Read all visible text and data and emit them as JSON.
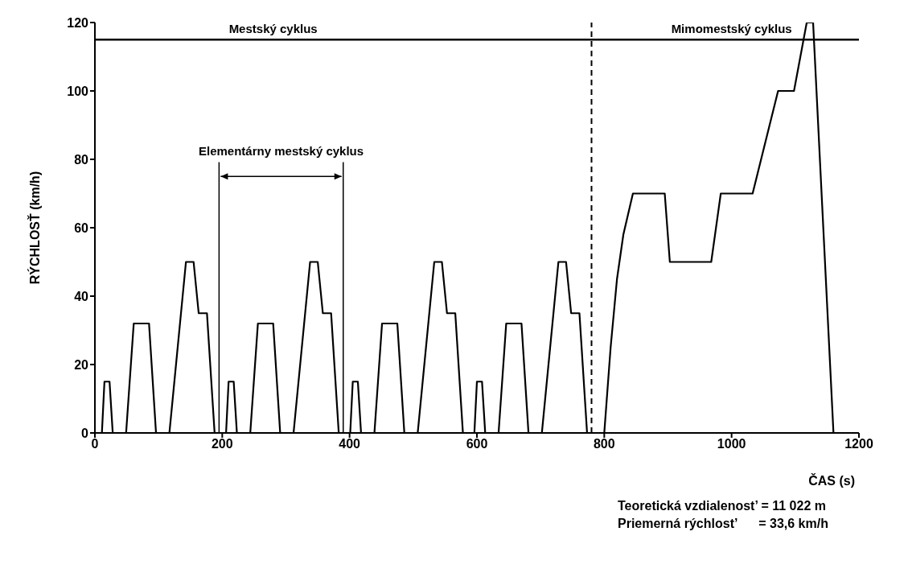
{
  "chart_data": {
    "type": "line",
    "xlabel": "ČAS (s)",
    "ylabel": "RÝCHLOSŤ (km/h)",
    "xlim": [
      0,
      1200
    ],
    "xticks": [
      0,
      200,
      400,
      600,
      800,
      1000,
      1200
    ],
    "ylim": [
      0,
      120
    ],
    "yticks": [
      0,
      20,
      40,
      60,
      80,
      100,
      120
    ],
    "grid": false,
    "legend": false,
    "marker": "none",
    "line_style": "solid",
    "series": [
      {
        "color": "#000000",
        "x": [
          0,
          11,
          15,
          23,
          28,
          49,
          61,
          85,
          96,
          117,
          143,
          155,
          163,
          176,
          188,
          195,
          206,
          210,
          218,
          223,
          244,
          256,
          280,
          291,
          312,
          338,
          350,
          358,
          371,
          383,
          390,
          401,
          405,
          413,
          418,
          439,
          451,
          475,
          486,
          507,
          533,
          545,
          553,
          566,
          578,
          585,
          596,
          600,
          608,
          613,
          634,
          646,
          670,
          681,
          702,
          728,
          740,
          748,
          761,
          773,
          780,
          800,
          810,
          820,
          830,
          845,
          895,
          903,
          968,
          983,
          1033,
          1073,
          1098,
          1118,
          1128,
          1160,
          1180
        ],
        "values": [
          0,
          0,
          15,
          15,
          0,
          0,
          32,
          32,
          0,
          0,
          50,
          50,
          35,
          35,
          0,
          0,
          0,
          15,
          15,
          0,
          0,
          32,
          32,
          0,
          0,
          50,
          50,
          35,
          35,
          0,
          0,
          0,
          15,
          15,
          0,
          0,
          32,
          32,
          0,
          0,
          50,
          50,
          35,
          35,
          0,
          0,
          0,
          15,
          15,
          0,
          0,
          32,
          32,
          0,
          0,
          50,
          50,
          35,
          35,
          0,
          0,
          0,
          25,
          45,
          58,
          70,
          70,
          50,
          50,
          70,
          70,
          100,
          100,
          120,
          120,
          0,
          0
        ]
      }
    ],
    "ref_lines": [
      {
        "axis": "x",
        "value": 780,
        "line_style": "dashed",
        "color": "#000000"
      },
      {
        "axis": "y",
        "value": 115,
        "line_style": "solid",
        "color": "#000000"
      },
      {
        "axis": "x",
        "value": 195,
        "line_style": "solid",
        "color": "#000000"
      },
      {
        "axis": "x",
        "value": 390,
        "line_style": "solid",
        "color": "#000000"
      }
    ],
    "annotations": [
      {
        "text": "Mestský cyklus",
        "x": 280,
        "y": 115
      },
      {
        "text": "Mimomestský cyklus",
        "x": 1000,
        "y": 115
      },
      "Elementárny mestský cyklus",
      "Teoretická vzdialenost’ = 11 022 m",
      "Priemerná rýchlost’      = 33,6 km/h"
    ]
  }
}
